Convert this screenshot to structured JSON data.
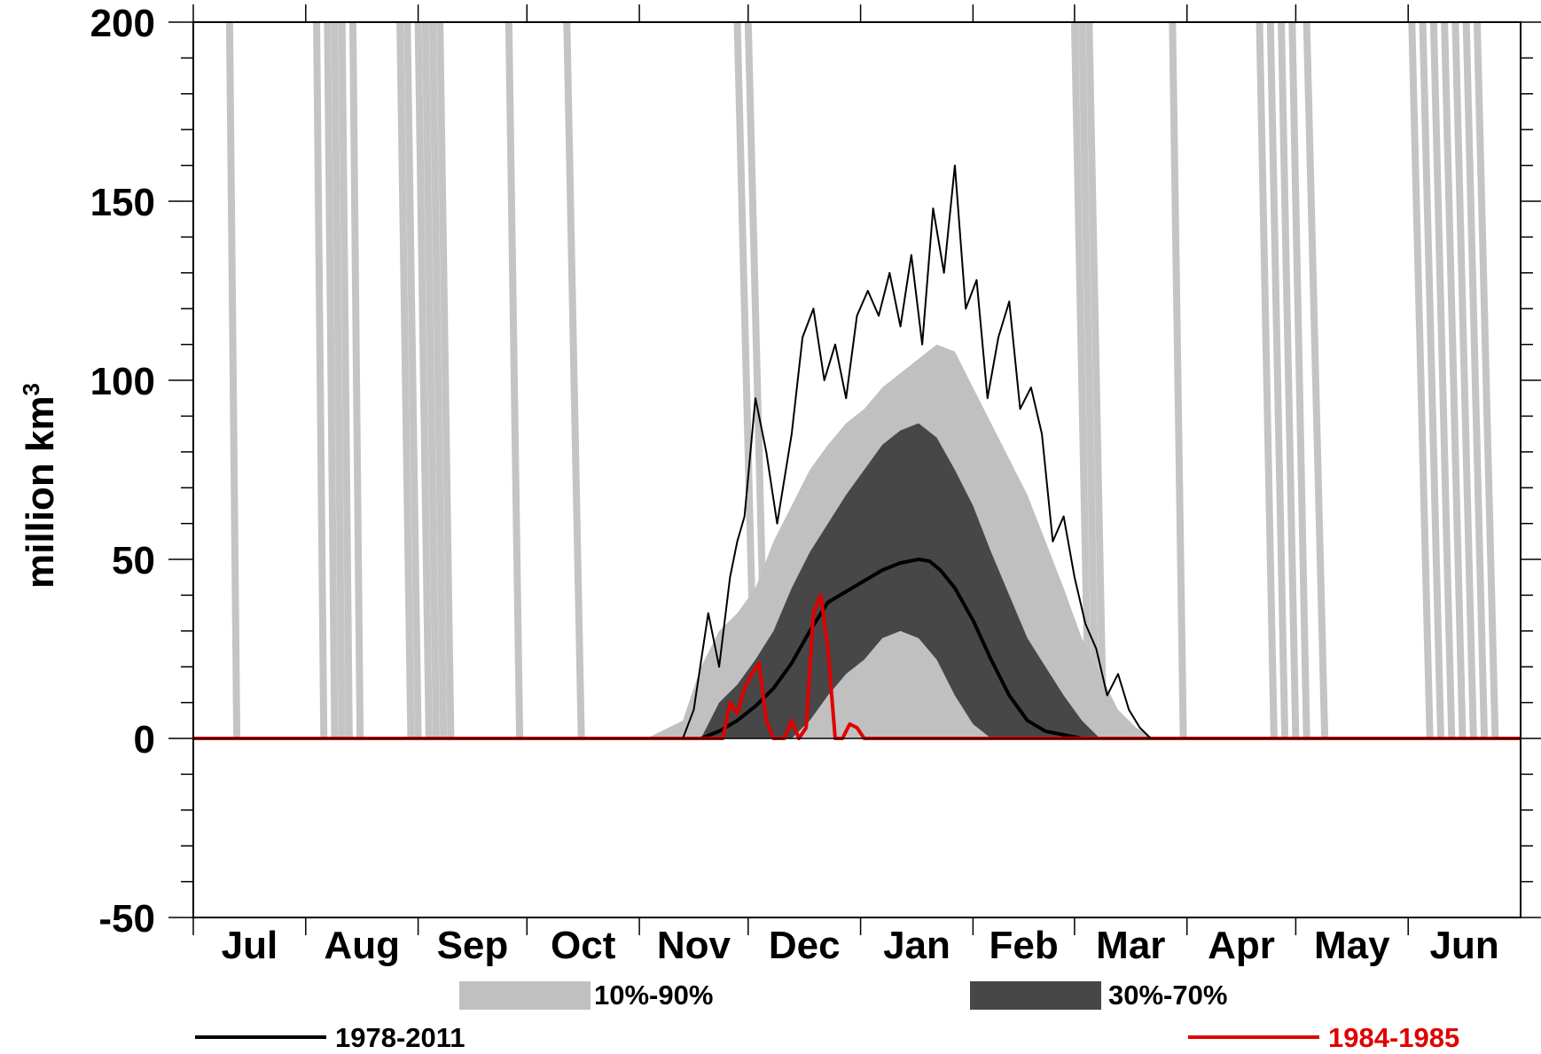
{
  "chart_data": {
    "type": "area",
    "title": "",
    "xlabel": "",
    "ylabel": "million km",
    "ylabel_superscript": "3",
    "ylim": [
      -50,
      200
    ],
    "yticks": [
      -50,
      0,
      50,
      100,
      150,
      200
    ],
    "ytick_labels": [
      "-50",
      "0",
      "50",
      "100",
      "150",
      "200"
    ],
    "x_unit": "day of season (0 = 1 Jul, 366 = 1 Jul)",
    "xlim": [
      0,
      366
    ],
    "months": [
      {
        "label": "Jul",
        "start": 0,
        "end": 31
      },
      {
        "label": "Aug",
        "start": 31,
        "end": 62
      },
      {
        "label": "Sep",
        "start": 62,
        "end": 92
      },
      {
        "label": "Oct",
        "start": 92,
        "end": 123
      },
      {
        "label": "Nov",
        "start": 123,
        "end": 153
      },
      {
        "label": "Dec",
        "start": 153,
        "end": 184
      },
      {
        "label": "Jan",
        "start": 184,
        "end": 215
      },
      {
        "label": "Feb",
        "start": 215,
        "end": 243
      },
      {
        "label": "Mar",
        "start": 243,
        "end": 274
      },
      {
        "label": "Apr",
        "start": 274,
        "end": 304
      },
      {
        "label": "May",
        "start": 304,
        "end": 335
      },
      {
        "label": "Jun",
        "start": 335,
        "end": 366
      }
    ],
    "grid": false,
    "legend_placement": "bottom",
    "colors": {
      "band_10_90": "#c0c0c0",
      "band_30_70": "#474747",
      "mean_line": "#000000",
      "season_line": "#e00000",
      "artifact_lines": "#c4c4c4",
      "max_line": "#000000"
    },
    "series": [
      {
        "name": "10%-90%",
        "kind": "band",
        "points": [
          [
            125,
            0,
            0
          ],
          [
            135,
            0,
            5
          ],
          [
            140,
            0,
            20
          ],
          [
            145,
            0,
            30
          ],
          [
            150,
            0,
            35
          ],
          [
            155,
            0,
            42
          ],
          [
            160,
            0,
            55
          ],
          [
            165,
            0,
            65
          ],
          [
            170,
            0,
            75
          ],
          [
            175,
            0,
            82
          ],
          [
            180,
            0,
            88
          ],
          [
            185,
            0,
            92
          ],
          [
            190,
            0,
            98
          ],
          [
            195,
            0,
            102
          ],
          [
            200,
            0,
            106
          ],
          [
            205,
            0,
            110
          ],
          [
            210,
            0,
            108
          ],
          [
            215,
            0,
            98
          ],
          [
            220,
            0,
            88
          ],
          [
            225,
            0,
            78
          ],
          [
            230,
            0,
            68
          ],
          [
            235,
            0,
            55
          ],
          [
            240,
            0,
            42
          ],
          [
            245,
            0,
            28
          ],
          [
            250,
            0,
            18
          ],
          [
            255,
            0,
            8
          ],
          [
            260,
            0,
            3
          ],
          [
            265,
            0,
            0
          ]
        ]
      },
      {
        "name": "30%-70%",
        "kind": "band",
        "points": [
          [
            140,
            0,
            0
          ],
          [
            145,
            0,
            10
          ],
          [
            150,
            0,
            15
          ],
          [
            155,
            0,
            22
          ],
          [
            160,
            0,
            30
          ],
          [
            165,
            0,
            42
          ],
          [
            170,
            5,
            52
          ],
          [
            175,
            12,
            60
          ],
          [
            180,
            18,
            68
          ],
          [
            185,
            22,
            75
          ],
          [
            190,
            28,
            82
          ],
          [
            195,
            30,
            86
          ],
          [
            200,
            28,
            88
          ],
          [
            205,
            22,
            84
          ],
          [
            210,
            12,
            75
          ],
          [
            215,
            4,
            65
          ],
          [
            220,
            0,
            52
          ],
          [
            225,
            0,
            40
          ],
          [
            230,
            0,
            28
          ],
          [
            235,
            0,
            20
          ],
          [
            240,
            0,
            12
          ],
          [
            245,
            0,
            5
          ],
          [
            250,
            0,
            0
          ]
        ]
      },
      {
        "name": "1978-2011",
        "kind": "line",
        "values": [
          [
            0,
            0
          ],
          [
            140,
            0
          ],
          [
            145,
            2
          ],
          [
            150,
            5
          ],
          [
            155,
            9
          ],
          [
            160,
            14
          ],
          [
            165,
            21
          ],
          [
            170,
            30
          ],
          [
            175,
            38
          ],
          [
            180,
            41
          ],
          [
            185,
            44
          ],
          [
            190,
            47
          ],
          [
            195,
            49
          ],
          [
            200,
            50
          ],
          [
            203,
            49.5
          ],
          [
            206,
            47
          ],
          [
            210,
            42
          ],
          [
            215,
            33
          ],
          [
            220,
            22
          ],
          [
            225,
            12
          ],
          [
            230,
            5
          ],
          [
            235,
            2
          ],
          [
            240,
            1
          ],
          [
            245,
            0
          ],
          [
            366,
            0
          ]
        ]
      },
      {
        "name": "1984-1985",
        "kind": "line",
        "values": [
          [
            0,
            0
          ],
          [
            138,
            0
          ],
          [
            146,
            0
          ],
          [
            148,
            10
          ],
          [
            150,
            7
          ],
          [
            152,
            14
          ],
          [
            154,
            18
          ],
          [
            156,
            21
          ],
          [
            158,
            5
          ],
          [
            160,
            0
          ],
          [
            163,
            0
          ],
          [
            165,
            5
          ],
          [
            167,
            0
          ],
          [
            169,
            3
          ],
          [
            171,
            35
          ],
          [
            173,
            40
          ],
          [
            175,
            25
          ],
          [
            177,
            0
          ],
          [
            179,
            0
          ],
          [
            181,
            4
          ],
          [
            183,
            3
          ],
          [
            185,
            0
          ],
          [
            366,
            0
          ]
        ]
      },
      {
        "name": "",
        "kind": "outline",
        "values": [
          [
            135,
            0
          ],
          [
            138,
            8
          ],
          [
            142,
            35
          ],
          [
            145,
            20
          ],
          [
            148,
            45
          ],
          [
            150,
            55
          ],
          [
            152,
            62
          ],
          [
            155,
            95
          ],
          [
            158,
            80
          ],
          [
            161,
            60
          ],
          [
            165,
            85
          ],
          [
            168,
            112
          ],
          [
            171,
            120
          ],
          [
            174,
            100
          ],
          [
            177,
            110
          ],
          [
            180,
            95
          ],
          [
            183,
            118
          ],
          [
            186,
            125
          ],
          [
            189,
            118
          ],
          [
            192,
            130
          ],
          [
            195,
            115
          ],
          [
            198,
            135
          ],
          [
            201,
            110
          ],
          [
            204,
            148
          ],
          [
            207,
            130
          ],
          [
            210,
            160
          ],
          [
            213,
            120
          ],
          [
            216,
            128
          ],
          [
            219,
            95
          ],
          [
            222,
            112
          ],
          [
            225,
            122
          ],
          [
            228,
            92
          ],
          [
            231,
            98
          ],
          [
            234,
            85
          ],
          [
            237,
            55
          ],
          [
            240,
            62
          ],
          [
            243,
            45
          ],
          [
            246,
            32
          ],
          [
            249,
            25
          ],
          [
            252,
            12
          ],
          [
            255,
            18
          ],
          [
            258,
            8
          ],
          [
            261,
            3
          ],
          [
            264,
            0
          ]
        ]
      }
    ],
    "artifact_lines": [
      [
        [
          10,
          200
        ],
        [
          12,
          0
        ]
      ],
      [
        [
          34,
          200
        ],
        [
          36,
          0
        ]
      ],
      [
        [
          37,
          200
        ],
        [
          39,
          0
        ]
      ],
      [
        [
          39,
          200
        ],
        [
          41,
          0
        ]
      ],
      [
        [
          41,
          200
        ],
        [
          43,
          0
        ]
      ],
      [
        [
          44,
          200
        ],
        [
          46,
          0
        ]
      ],
      [
        [
          57,
          200
        ],
        [
          60,
          0
        ]
      ],
      [
        [
          59,
          200
        ],
        [
          62,
          0
        ]
      ],
      [
        [
          62,
          200
        ],
        [
          65,
          0
        ]
      ],
      [
        [
          64,
          200
        ],
        [
          67,
          0
        ]
      ],
      [
        [
          66,
          200
        ],
        [
          69,
          0
        ]
      ],
      [
        [
          68,
          200
        ],
        [
          71,
          0
        ]
      ],
      [
        [
          87,
          200
        ],
        [
          90,
          0
        ]
      ],
      [
        [
          103,
          200
        ],
        [
          107,
          0
        ]
      ],
      [
        [
          150,
          200
        ],
        [
          155,
          0
        ]
      ],
      [
        [
          153,
          200
        ],
        [
          158,
          0
        ]
      ],
      [
        [
          243,
          200
        ],
        [
          247,
          0
        ]
      ],
      [
        [
          245,
          200
        ],
        [
          249,
          0
        ]
      ],
      [
        [
          247,
          200
        ],
        [
          251,
          0
        ]
      ],
      [
        [
          270,
          200
        ],
        [
          273,
          0
        ]
      ],
      [
        [
          294,
          200
        ],
        [
          298,
          0
        ]
      ],
      [
        [
          297,
          200
        ],
        [
          301,
          0
        ]
      ],
      [
        [
          300,
          200
        ],
        [
          304,
          0
        ]
      ],
      [
        [
          303,
          200
        ],
        [
          307,
          0
        ]
      ],
      [
        [
          307,
          200
        ],
        [
          312,
          0
        ]
      ],
      [
        [
          336,
          200
        ],
        [
          341,
          0
        ]
      ],
      [
        [
          339,
          200
        ],
        [
          344,
          0
        ]
      ],
      [
        [
          342,
          200
        ],
        [
          347,
          0
        ]
      ],
      [
        [
          345,
          200
        ],
        [
          350,
          0
        ]
      ],
      [
        [
          348,
          200
        ],
        [
          353,
          0
        ]
      ],
      [
        [
          351,
          200
        ],
        [
          356,
          0
        ]
      ],
      [
        [
          354,
          200
        ],
        [
          359,
          0
        ]
      ]
    ],
    "legend": [
      {
        "label": "10%-90%",
        "kind": "band",
        "color": "#c0c0c0",
        "text_color": "#000000"
      },
      {
        "label": "30%-70%",
        "kind": "band",
        "color": "#474747",
        "text_color": "#000000"
      },
      {
        "label": "1978-2011",
        "kind": "line",
        "color": "#000000",
        "text_color": "#000000"
      },
      {
        "label": "1984-1985",
        "kind": "line",
        "color": "#e00000",
        "text_color": "#e00000"
      }
    ]
  }
}
